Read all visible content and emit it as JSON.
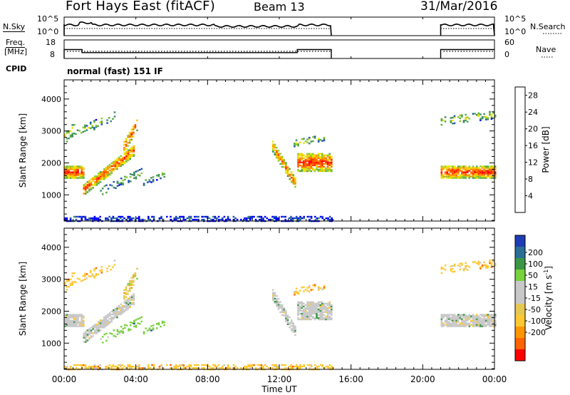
{
  "header": {
    "station": "Fort Hays East (fitACF)",
    "beam": "Beam 13",
    "date": "31/Mar/2016"
  },
  "strip_labels": {
    "nsky": "N.Sky",
    "nsearch": "N.Search",
    "freq_line1": "Freq.",
    "freq_line2": "[MHz]",
    "nave": "Nave",
    "cpid": "CPID",
    "cpid_value": "normal (fast) 151 IF"
  },
  "colors": {
    "power_scale": [
      "#0000ff",
      "#1e50b4",
      "#3c8c64",
      "#55aa46",
      "#8cc832",
      "#e6e600",
      "#ffc800",
      "#ff9600",
      "#ff6400",
      "#ff3200",
      "#ff0000"
    ],
    "velocity_scale": [
      "#ff0000",
      "#ff6400",
      "#ff9600",
      "#ffc832",
      "#e6c850",
      "#c8c8c8",
      "#c8c8c8",
      "#78d23c",
      "#3c9646",
      "#2a6e96",
      "#1e3cb4"
    ]
  },
  "chart_data": [
    {
      "type": "line",
      "name": "noise-strip",
      "title": "",
      "left_label": "N.Sky",
      "right_label": "N.Search",
      "left_ticks": [
        "10^5",
        "10^0"
      ],
      "right_ticks": [
        "10^5",
        "10^0"
      ],
      "segments": [
        {
          "x0": 0.0,
          "x1": 14.9,
          "level": "high"
        },
        {
          "x0": 21.0,
          "x1": 24.0,
          "level": "high"
        }
      ]
    },
    {
      "type": "line",
      "name": "freq-strip",
      "left_label": "Freq. [MHz]",
      "right_label": "Nave",
      "left_ticks": [
        "18",
        "8"
      ],
      "right_ticks": [
        "60",
        "0"
      ],
      "freq_segments": [
        {
          "x0": 0.0,
          "x1": 1.0,
          "mhz": 12.5
        },
        {
          "x0": 1.0,
          "x1": 13.0,
          "mhz": 10.5
        },
        {
          "x0": 13.0,
          "x1": 14.9,
          "mhz": 12.5
        },
        {
          "x0": 21.0,
          "x1": 24.0,
          "mhz": 12.5
        }
      ]
    },
    {
      "type": "heatmap",
      "name": "power-panel",
      "ylabel": "Slant Range [km]",
      "y_ticks": [
        1000,
        2000,
        3000,
        4000
      ],
      "ylim": [
        180,
        4600
      ],
      "xlim": [
        0,
        24
      ],
      "colorbar_label": "Power [dB]",
      "colorbar_ticks": [
        "4",
        "8",
        "12",
        "16",
        "20",
        "24",
        "28"
      ]
    },
    {
      "type": "heatmap",
      "name": "velocity-panel",
      "ylabel": "Slant Range [km]",
      "y_ticks": [
        1000,
        2000,
        3000,
        4000
      ],
      "ylim": [
        180,
        4600
      ],
      "xlim": [
        0,
        24
      ],
      "colorbar_label": "Velocity [m s",
      "colorbar_label_sup": "-1",
      "colorbar_label_end": "]",
      "colorbar_ticks": [
        "200",
        "100",
        "50",
        "15",
        "-15",
        "-50",
        "-100",
        "-200"
      ]
    }
  ],
  "x_axis": {
    "ticks": [
      "00:00",
      "04:00",
      "08:00",
      "12:00",
      "16:00",
      "20:00",
      "00:00"
    ],
    "label": "Time UT"
  }
}
